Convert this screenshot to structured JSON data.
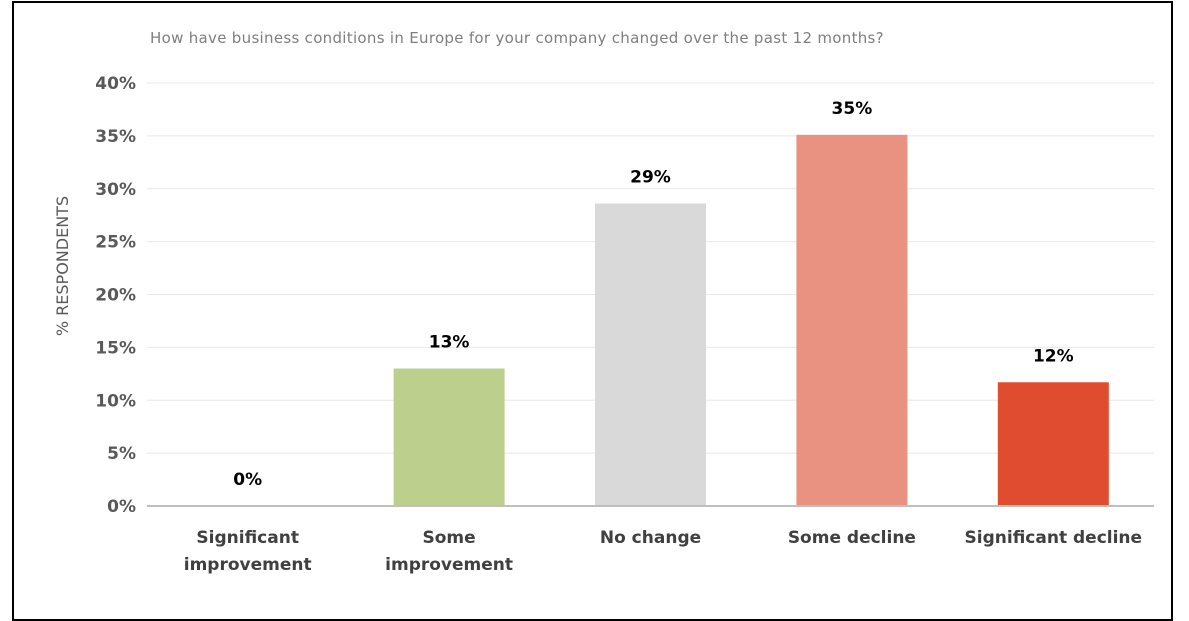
{
  "chart_data": {
    "type": "bar",
    "title": "How have business conditions in Europe for your company changed over the past 12 months?",
    "xlabel": "",
    "ylabel": "% RESPONDENTS",
    "ylim": [
      0,
      40
    ],
    "yticks": [
      0,
      5,
      10,
      15,
      20,
      25,
      30,
      35,
      40
    ],
    "ytick_suffix": "%",
    "grid": true,
    "categories": [
      [
        "Significant",
        "improvement"
      ],
      [
        "Some",
        "improvement"
      ],
      [
        "No change"
      ],
      [
        "Some decline"
      ],
      [
        "Significant decline"
      ]
    ],
    "values": [
      0,
      13,
      28.6,
      35.1,
      11.7
    ],
    "data_labels": [
      "0%",
      "13%",
      "29%",
      "35%",
      "12%"
    ],
    "colors": [
      "#c5d9a3",
      "#bccf8c",
      "#d9d9d9",
      "#ea9282",
      "#e04c30"
    ]
  }
}
